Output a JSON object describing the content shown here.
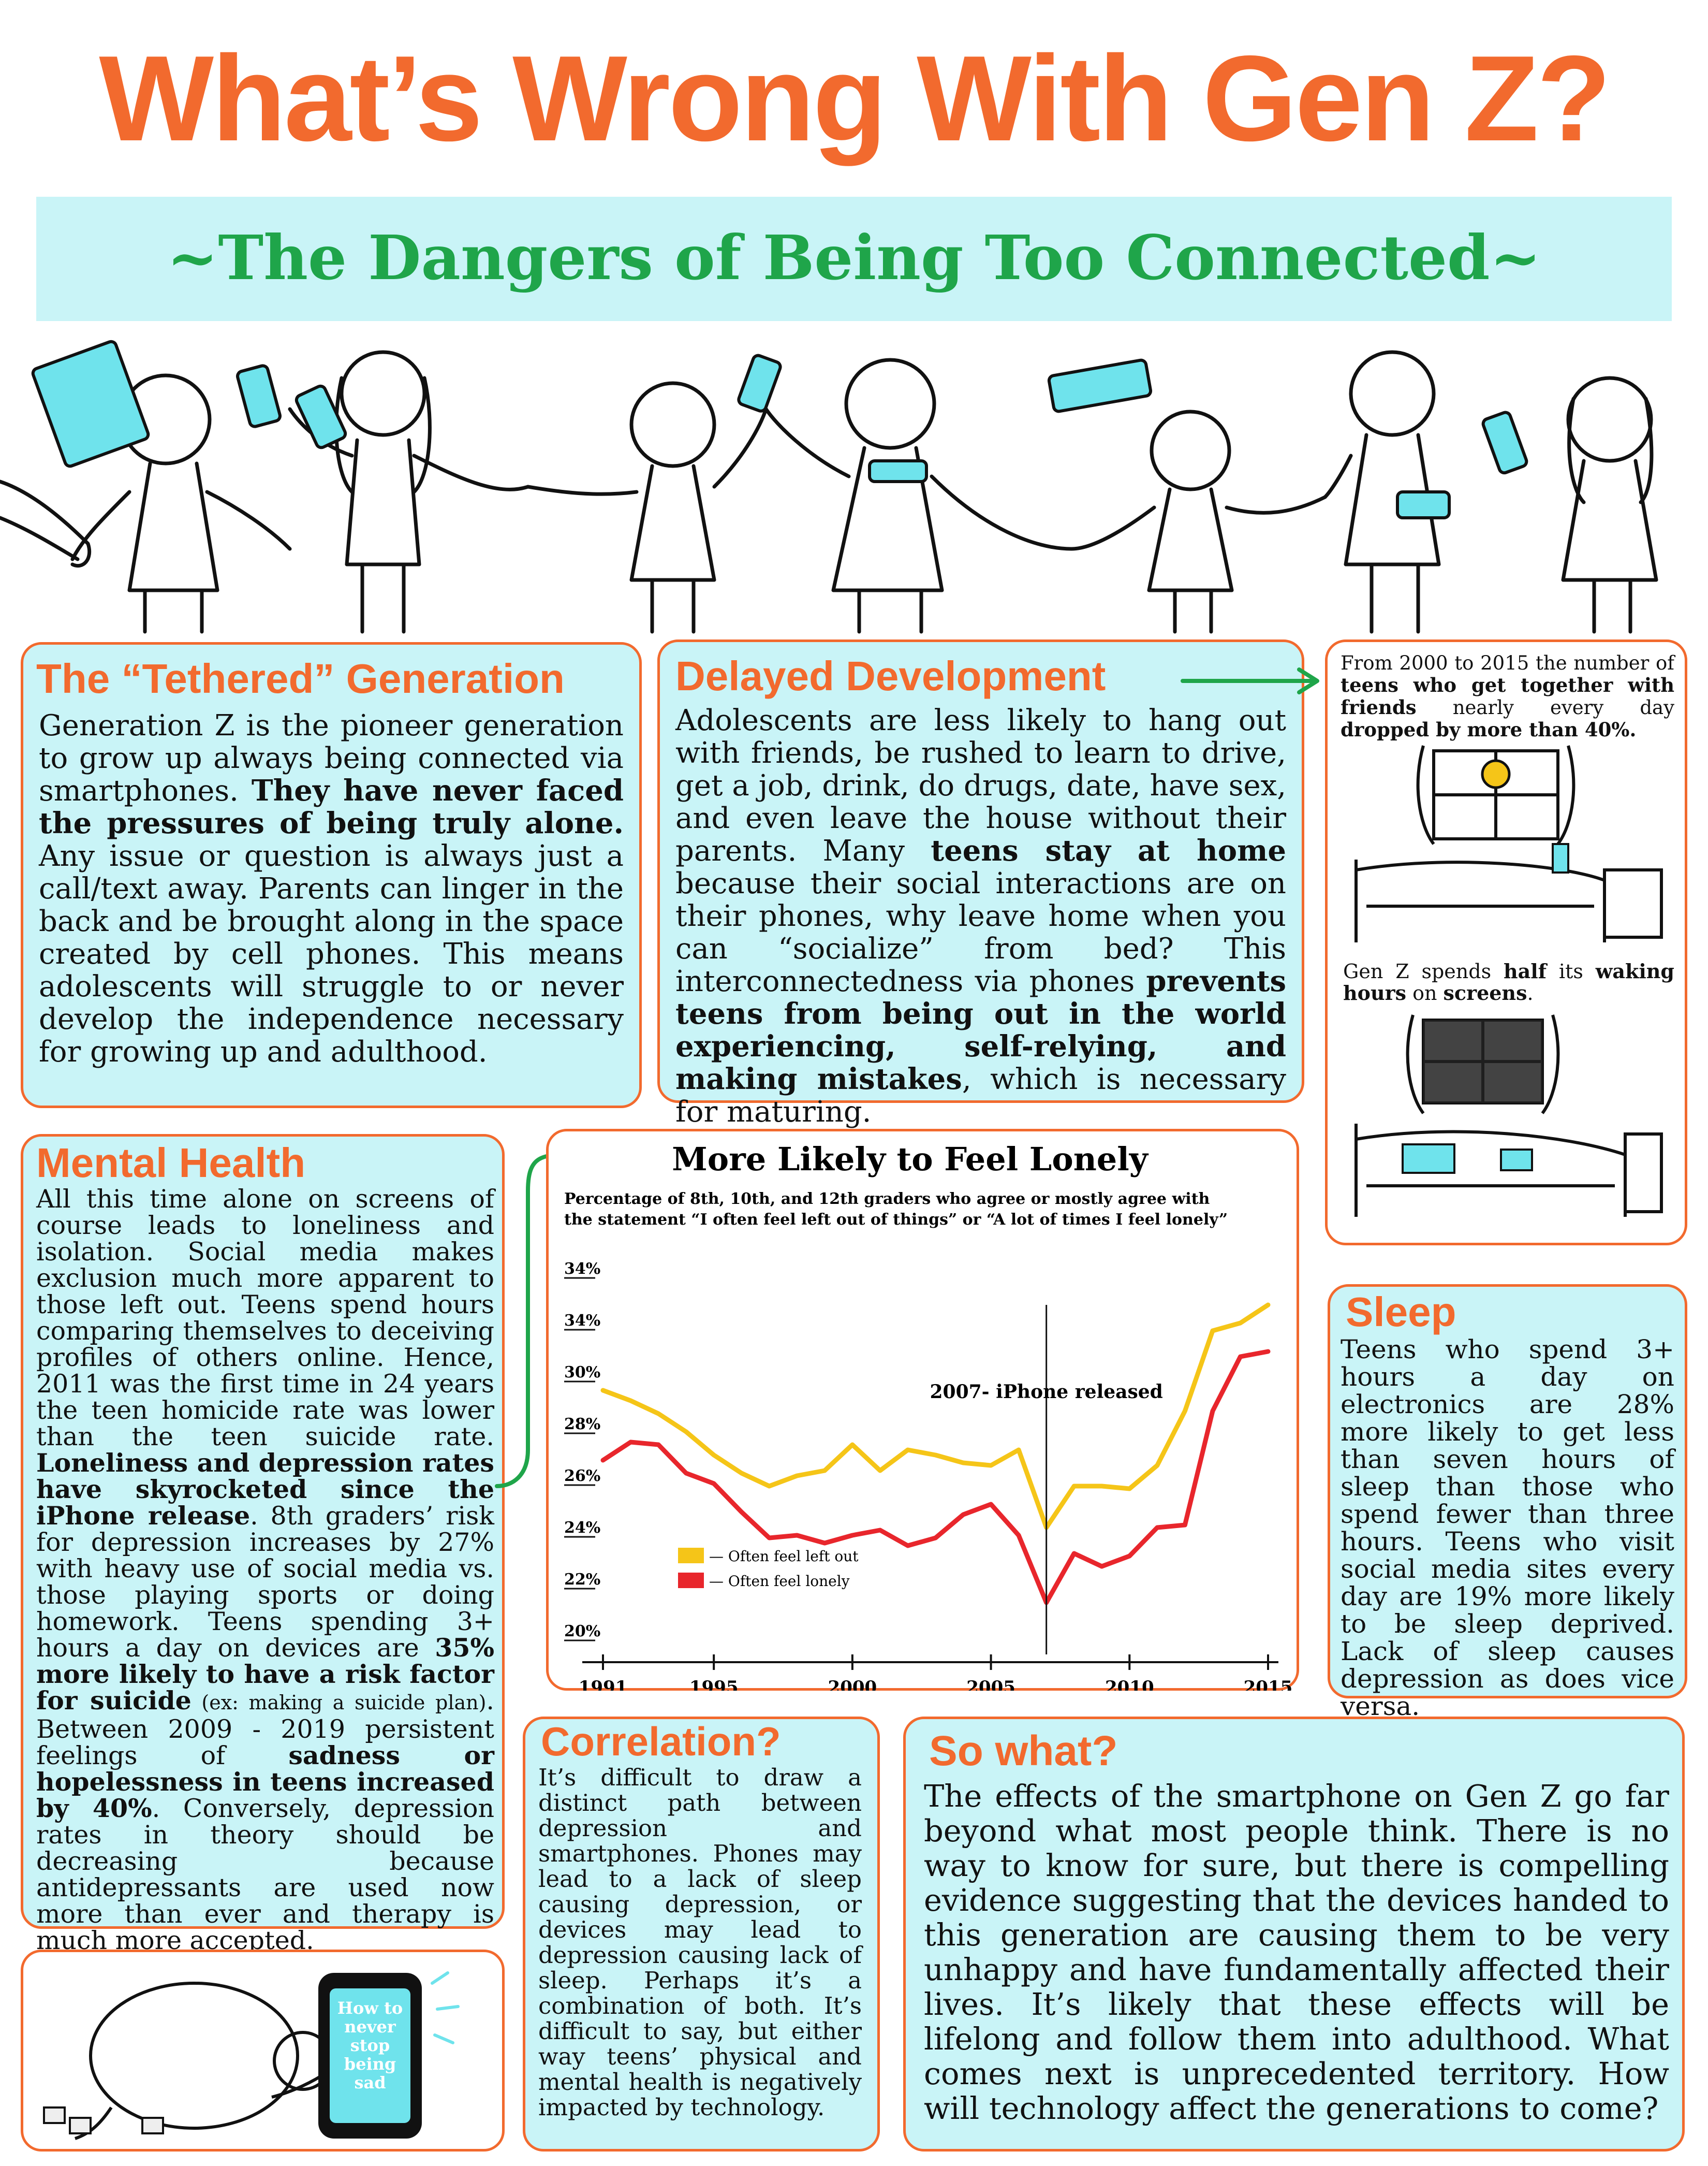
{
  "title": "What’s Wrong With Gen Z?",
  "subtitle": "~The Dangers of Being Too Connected~",
  "tethered": {
    "heading": "The “Tethered” Generation",
    "p1": "Generation Z is the pioneer generation to grow up always being connected via smartphones. ",
    "b1": "They have never faced the pressures of being truly alone.",
    "p2": " Any issue or question is always just a call/text away. Parents can linger in the back and be brought along in the space created by cell phones. This means adolescents will struggle to or never develop the independence necessary for growing up and adulthood."
  },
  "delayed": {
    "heading": "Delayed Development",
    "p1": "Adolescents are less likely to hang out with friends, be rushed to learn to drive, get a job, drink, do drugs, date, have sex, and even leave the house without their parents. Many ",
    "b1": "teens stay at home",
    "p2": " because their social interactions are on their phones, why leave home when you can “socialize” from bed? This interconnectedness via phones ",
    "b2": "prevents teens from being out in the world experiencing, self-relying, and making mistakes",
    "p3": ", which is necessary for maturing."
  },
  "sidebar": {
    "fact1_a": "From 2000 to 2015 the number of ",
    "fact1_b": "teens who get together with friends",
    "fact1_c": " nearly every day ",
    "fact1_d": "dropped by more than 40%.",
    "fact2_a": "Gen Z spends ",
    "fact2_b": "half",
    "fact2_c": " its ",
    "fact2_d": "waking hours",
    "fact2_e": " on ",
    "fact2_f": "screens",
    "fact2_g": "."
  },
  "mental": {
    "heading": "Mental Health",
    "p1": "All this time alone on screens of course leads to loneliness and isolation. Social media makes exclusion much more apparent to those left out. Teens spend hours comparing themselves to deceiving profiles of others online. Hence, 2011 was the first time in 24 years the teen homicide rate was lower than the teen suicide rate. ",
    "b1": "Loneliness and depression rates have skyrocketed since the iPhone release",
    "p2": ". 8th graders’ risk for depression increases by 27% with heavy use of social media vs. those playing sports or doing homework. Teens spending 3+ hours a day on devices are ",
    "b2": "35% more likely to have a risk factor for suicide",
    "s1": " (ex: making a suicide plan)",
    "p3": ". Between 2009 - 2019 persistent feelings of ",
    "b3": "sadness or hopelessness in teens increased by 40%",
    "p4": ". Conversely, depression rates in theory should be decreasing because antidepressants are used now more than ever and therapy is much more accepted."
  },
  "sleep": {
    "heading": "Sleep",
    "text": "Teens who spend 3+ hours a day on electronics are 28% more likely to get less than seven hours of sleep than those who spend fewer than three hours. Teens who visit social media sites every day are 19% more likely to be sleep deprived. Lack of sleep causes depression as does vice versa."
  },
  "correlation": {
    "heading": "Correlation?",
    "text": "It’s difficult to draw a distinct path between depression and smartphones. Phones may lead to a lack of sleep causing depression, or devices may lead to depression causing lack of sleep. Perhaps it’s a combination of both. It’s difficult to say, but either way teens’ physical and mental health is negatively impacted by technology."
  },
  "sowhat": {
    "heading": "So what?",
    "text": "The effects of the smartphone on Gen Z go far beyond what most people think. There is no way to know for sure, but there is compelling evidence suggesting that the devices handed to this generation are causing them to be very unhappy and have fundamentally affected their lives. It’s likely that these effects will be lifelong and follow them into adulthood. What comes next is unprecedented territory. How will technology affect the generations to come?"
  },
  "phone_screen_text": "How to never stop being sad",
  "colors": {
    "orange": "#f26a2e",
    "green": "#1fa54a",
    "cyan": "#c9f4f7",
    "yellow": "#f5c518",
    "red": "#e8262c"
  },
  "chart_data": {
    "type": "line",
    "title": "More Likely to Feel Lonely",
    "subtitle_line1": "Percentage of 8th, 10th, and 12th graders who agree or mostly agree with",
    "subtitle_line2": "the statement “I often feel left out of things” or “A lot of times I feel lonely”",
    "annotation": "2007- iPhone released",
    "annotation_x": 2007,
    "y_tick_labels": [
      "34%",
      "34%",
      "30%",
      "28%",
      "26%",
      "24%",
      "22%",
      "20%"
    ],
    "x_tick_labels": [
      "1991",
      "1995",
      "2000",
      "2005",
      "2010",
      "2015"
    ],
    "x_ticks": [
      1991,
      1995,
      2000,
      2005,
      2010,
      2015
    ],
    "xlim": [
      1991,
      2015
    ],
    "ylim": [
      20,
      34
    ],
    "x": [
      1991,
      1992,
      1993,
      1994,
      1995,
      1996,
      1997,
      1998,
      1999,
      2000,
      2001,
      2002,
      2003,
      2004,
      2005,
      2006,
      2007,
      2008,
      2009,
      2010,
      2011,
      2012,
      2013,
      2014,
      2015
    ],
    "series": [
      {
        "name": "Often feel left out",
        "color": "#f5c518",
        "values": [
          29.7,
          29.3,
          28.8,
          28.1,
          27.2,
          26.5,
          26.0,
          26.4,
          26.6,
          27.6,
          26.6,
          27.4,
          27.2,
          26.9,
          26.8,
          27.4,
          24.4,
          26.0,
          26.0,
          25.9,
          26.8,
          28.9,
          32.0,
          32.3,
          33.0
        ]
      },
      {
        "name": "Often feel lonely",
        "color": "#e8262c",
        "values": [
          27.0,
          27.7,
          27.6,
          26.5,
          26.1,
          25.0,
          24.0,
          24.1,
          23.8,
          24.1,
          24.3,
          23.7,
          24.0,
          24.9,
          25.3,
          24.1,
          21.5,
          23.4,
          22.9,
          23.3,
          24.4,
          24.5,
          28.9,
          31.0,
          31.2
        ]
      }
    ],
    "legend": [
      "— Often feel left out",
      "— Often feel lonely"
    ],
    "legend_position": "lower-left"
  }
}
